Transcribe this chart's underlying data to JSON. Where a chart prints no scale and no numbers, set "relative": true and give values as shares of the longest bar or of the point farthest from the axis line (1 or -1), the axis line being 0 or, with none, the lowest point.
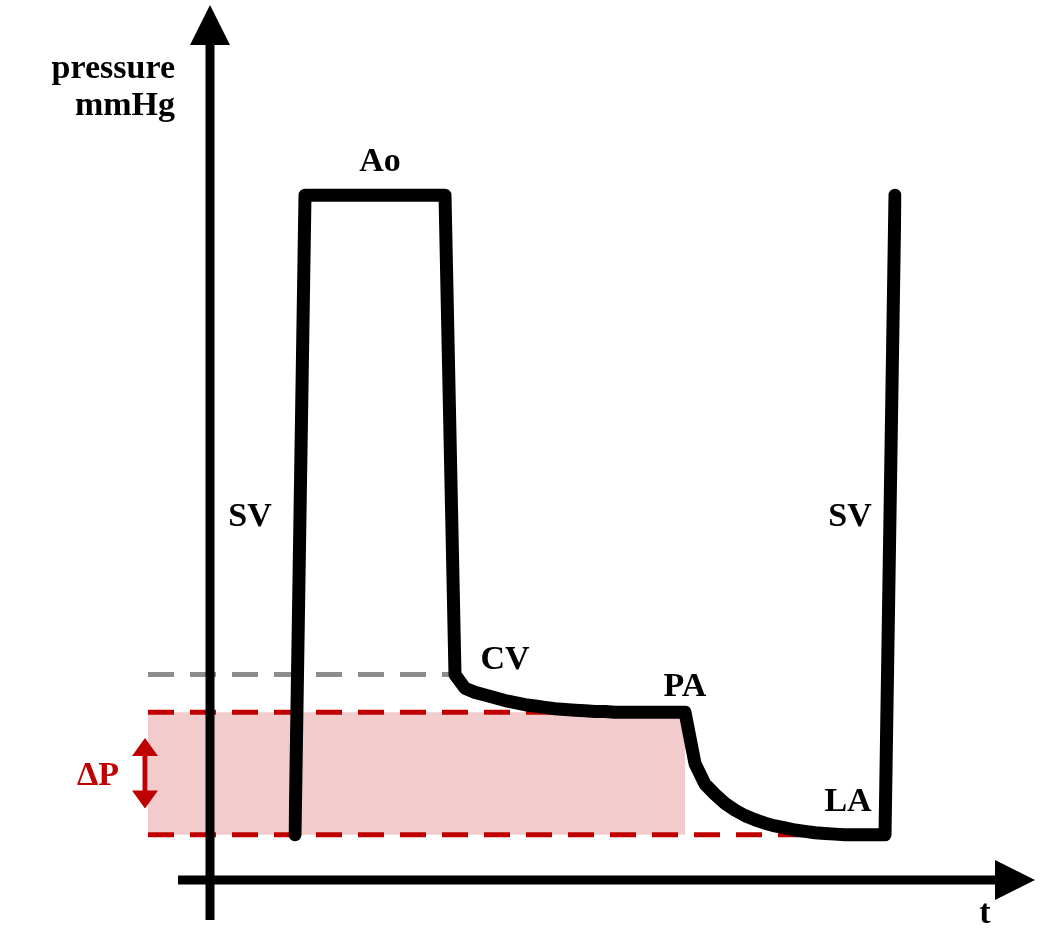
{
  "chart_data": {
    "type": "line",
    "relative": true,
    "xlabel": "t",
    "ylabel": "pressure mmHg",
    "categories": [
      null,
      null,
      null,
      null,
      null,
      null,
      null,
      null,
      null,
      null,
      null,
      null,
      null,
      null,
      null,
      null,
      null,
      null,
      null,
      null,
      null,
      null,
      null,
      null,
      null,
      null,
      null,
      null,
      null,
      null,
      null,
      null,
      null,
      null,
      null,
      null,
      null,
      null,
      null,
      null,
      null,
      null,
      null,
      null,
      null,
      null,
      null,
      null,
      null,
      null,
      null,
      null,
      null,
      null,
      null,
      null,
      null,
      null,
      null,
      null,
      null
    ],
    "series": [
      {
        "color": "#000000",
        "values": [
          0.066,
          1.0,
          1.0,
          1.0,
          1.0,
          1.0,
          1.0,
          1.0,
          1.0,
          1.0,
          1.0,
          1.0,
          1.0,
          1.0,
          1.0,
          1.0,
          0.3,
          0.28,
          0.274,
          0.27,
          0.266,
          0.262,
          0.259,
          0.256,
          0.254,
          0.252,
          0.25,
          0.249,
          0.248,
          0.247,
          0.246,
          0.246,
          0.245,
          0.245,
          0.245,
          0.245,
          0.245,
          0.245,
          0.245,
          0.245,
          0.17,
          0.14,
          0.125,
          0.112,
          0.102,
          0.094,
          0.088,
          0.083,
          0.079,
          0.076,
          0.073,
          0.071,
          0.069,
          0.068,
          0.067,
          0.066,
          0.066,
          0.066,
          0.066,
          0.066,
          1.0
        ]
      }
    ],
    "ref_lines": [
      {
        "axis": "y",
        "value": 0.3,
        "color": "#8c8c8c",
        "line_style": "dashed"
      },
      {
        "axis": "y",
        "value": 0.245,
        "color": "#c00000",
        "line_style": "dashed"
      },
      {
        "axis": "y",
        "value": 0.066,
        "color": "#c00000",
        "line_style": "dashed"
      }
    ],
    "bands": [
      {
        "axis": "y",
        "from": 0.066,
        "to": 0.245,
        "label": "ΔP",
        "color": "#c00000"
      }
    ],
    "annotations": [
      "SV",
      "Ao",
      "CV",
      "PA",
      "LA",
      "SV"
    ],
    "marker": "none",
    "line_style": "solid"
  }
}
